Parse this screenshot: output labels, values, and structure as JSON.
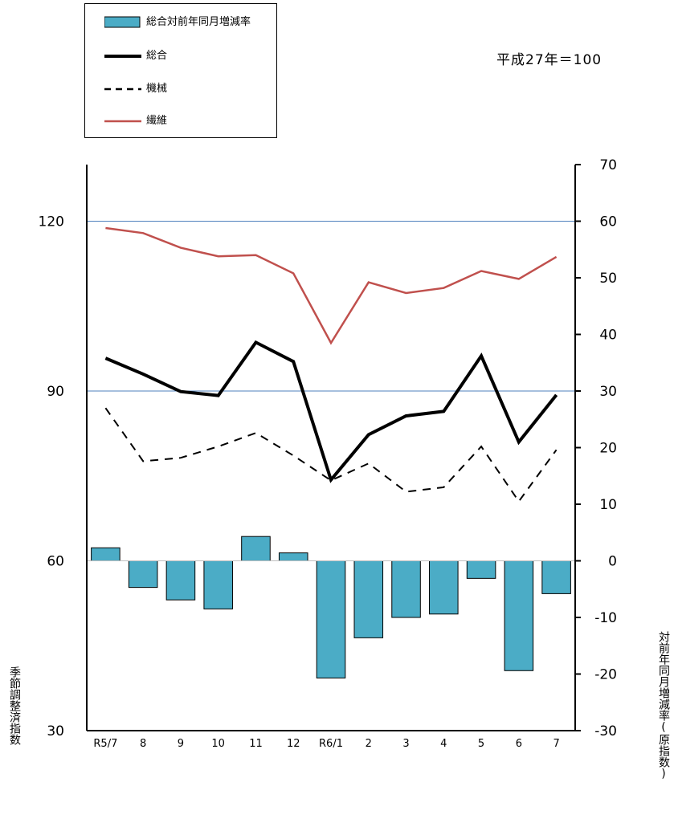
{
  "chart_data": {
    "type": "bar+line",
    "note": "平成27年＝100",
    "categories": [
      "R5/7",
      "8",
      "9",
      "10",
      "11",
      "12",
      "R6/1",
      "2",
      "3",
      "4",
      "5",
      "6",
      "7"
    ],
    "left_axis": {
      "label": "季節調整済指数",
      "ylim": [
        30,
        130
      ],
      "ticks": [
        30,
        60,
        90,
        120
      ]
    },
    "right_axis": {
      "label": "対前年同月増減率(原指数)",
      "ylim": [
        -30,
        70
      ],
      "ticks": [
        -30,
        -20,
        -10,
        0,
        10,
        20,
        30,
        40,
        50,
        60,
        70
      ]
    },
    "gridlines_left": [
      90,
      120
    ],
    "bar_series": {
      "name": "総合対前年同月増減率",
      "axis": "right",
      "color": "#4bacc6",
      "values": [
        2.3,
        -4.7,
        -6.9,
        -8.5,
        4.3,
        1.4,
        -20.7,
        -13.6,
        -10.0,
        -9.4,
        -3.1,
        -19.4,
        -5.8
      ]
    },
    "line_series": [
      {
        "name": "総合",
        "axis": "left",
        "color": "#000000",
        "style": "solid",
        "width": 4,
        "values": [
          95.8,
          93.0,
          89.9,
          89.2,
          98.6,
          95.2,
          74.3,
          82.3,
          85.6,
          86.4,
          96.2,
          81.0,
          89.3
        ]
      },
      {
        "name": "機械",
        "axis": "left",
        "color": "#000000",
        "style": "dashed",
        "width": 2,
        "values": [
          87.0,
          77.6,
          78.2,
          80.2,
          82.6,
          78.6,
          74.2,
          77.2,
          72.2,
          73.0,
          80.2,
          70.5,
          79.6
        ]
      },
      {
        "name": "繊維",
        "axis": "left",
        "color": "#c0504d",
        "style": "solid",
        "width": 2.5,
        "values": [
          118.8,
          117.9,
          115.3,
          113.8,
          114.0,
          110.8,
          98.5,
          109.2,
          107.3,
          108.2,
          111.2,
          109.8,
          113.7
        ]
      }
    ]
  },
  "legend": {
    "items": [
      {
        "label": "総合対前年同月増減率",
        "kind": "bar",
        "color": "#4bacc6"
      },
      {
        "label": "総合",
        "kind": "line",
        "color": "#000000",
        "dash": "",
        "width": 4
      },
      {
        "label": "機械",
        "kind": "line",
        "color": "#000000",
        "dash": "8,6",
        "width": 2.5
      },
      {
        "label": "繊維",
        "kind": "line",
        "color": "#c0504d",
        "dash": "",
        "width": 2.5
      }
    ]
  }
}
